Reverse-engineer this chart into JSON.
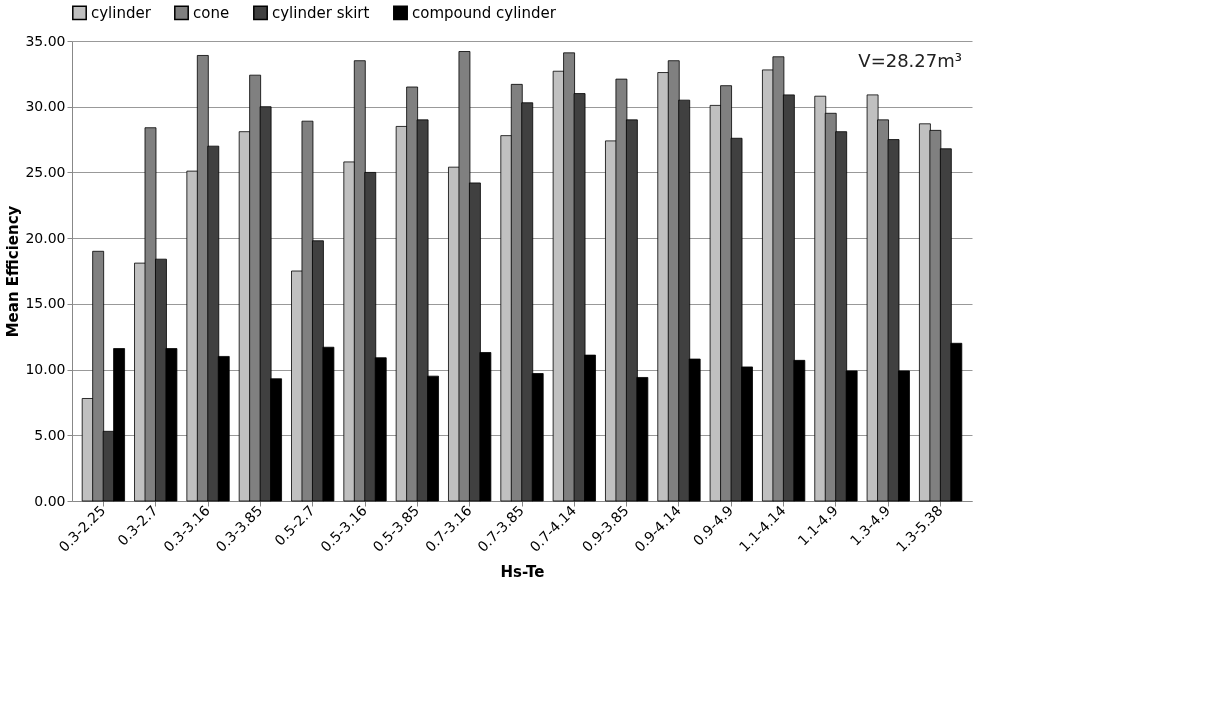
{
  "chart_data": {
    "type": "bar",
    "xlabel": "Hs-Te",
    "ylabel": "Mean Efficiency",
    "categories": [
      "0.3-2.25",
      "0.3-2.7",
      "0.3-3.16",
      "0.3-3.85",
      "0.5-2.7",
      "0.5-3.16",
      "0.5-3.85",
      "0.7-3.16",
      "0.7-3.85",
      "0.7-4.14",
      "0.9-3.85",
      "0.9-4.14",
      "0.9-4.9",
      "1.1-4.14",
      "1.1-4.9",
      "1.3-4.9",
      "1.3-5.38"
    ],
    "series": [
      {
        "name": "cylinder",
        "color": "#c0c0c0",
        "values": [
          7.8,
          18.1,
          25.1,
          28.1,
          17.5,
          25.8,
          28.5,
          25.4,
          27.8,
          32.7,
          27.4,
          32.6,
          30.1,
          32.8,
          30.8,
          30.9,
          28.7
        ]
      },
      {
        "name": "cone",
        "color": "#808080",
        "values": [
          19.0,
          28.4,
          33.9,
          32.4,
          28.9,
          33.5,
          31.5,
          34.2,
          31.7,
          34.1,
          32.1,
          33.5,
          31.6,
          33.8,
          29.5,
          29.0,
          28.2
        ]
      },
      {
        "name": "cylinder skirt",
        "color": "#404040",
        "values": [
          5.3,
          18.4,
          27.0,
          30.0,
          19.8,
          25.0,
          29.0,
          24.2,
          30.3,
          31.0,
          29.0,
          30.5,
          27.6,
          30.9,
          28.1,
          27.5,
          26.8
        ]
      },
      {
        "name": "compound cylinder",
        "color": "#000000",
        "values": [
          11.6,
          11.6,
          11.0,
          9.3,
          11.7,
          10.9,
          9.5,
          11.3,
          9.7,
          11.1,
          9.4,
          10.8,
          10.2,
          10.7,
          9.9,
          9.9,
          12.0
        ]
      }
    ],
    "ylim": [
      0,
      35
    ],
    "yticks": [
      {
        "value": 0,
        "label": "0.00"
      },
      {
        "value": 5,
        "label": "5.00"
      },
      {
        "value": 10,
        "label": "10.00"
      },
      {
        "value": 15,
        "label": "15.00"
      },
      {
        "value": 20,
        "label": "20.00"
      },
      {
        "value": 25,
        "label": "25.00"
      },
      {
        "value": 30,
        "label": "30.00"
      },
      {
        "value": 35,
        "label": "35.00"
      }
    ],
    "grid": "y",
    "legend": "top",
    "annotations": [
      "V=28.27m³"
    ]
  }
}
